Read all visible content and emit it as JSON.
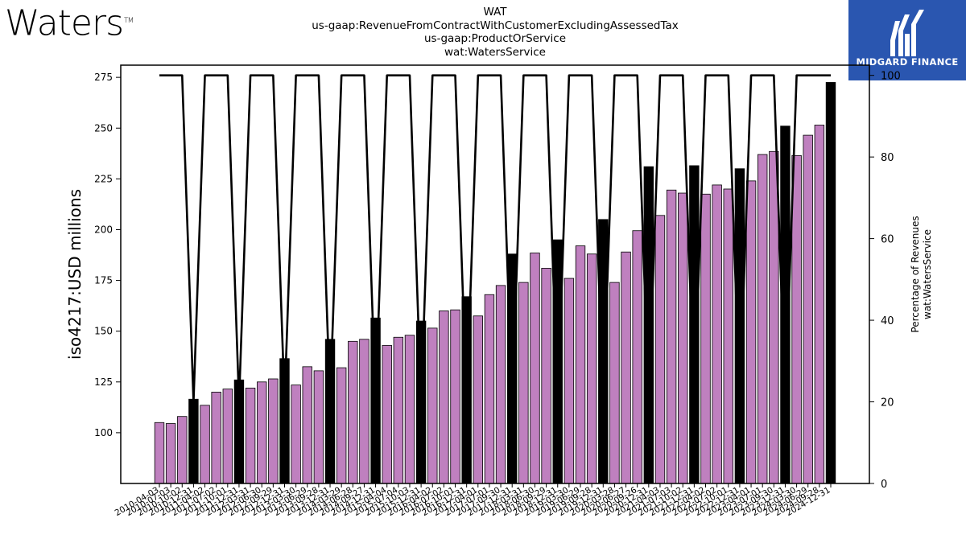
{
  "brand": {
    "logo": "Waters",
    "trademark": "TM"
  },
  "header": {
    "lines": [
      "WAT",
      "us-gaap:RevenueFromContractWithCustomerExcludingAssessedTax",
      "us-gaap:ProductOrService",
      "wat:WatersService"
    ]
  },
  "badge": {
    "name": "MIDGARD FINANCE",
    "icon": "midgard-logo-icon"
  },
  "colors": {
    "quarter_bar": "#bf80bf",
    "annual_bar": "#000000",
    "line": "#000000"
  },
  "chart_data": {
    "type": "bar",
    "ylabel": "iso4217:USD  millions",
    "y2label": [
      "Percentage of Revenues",
      "wat:WatersService"
    ],
    "ylim": [
      75,
      281
    ],
    "y2lim": [
      0,
      102.5
    ],
    "yticks": [
      100,
      125,
      150,
      175,
      200,
      225,
      250,
      275
    ],
    "y2ticks": [
      0,
      20,
      40,
      60,
      80,
      100
    ],
    "x_tick_labels": [
      "2010-04-03",
      "2010-07-03",
      "2010-10-02",
      "2010-12-31",
      "2011-04-02",
      "2011-07-02",
      "2011-10-01",
      "2011-12-31",
      "2012-03-31",
      "2012-06-30",
      "2012-09-29",
      "2012-12-31",
      "2013-03-30",
      "2013-06-29",
      "2013-09-28",
      "2013-12-31",
      "2014-03-29",
      "2014-06-28",
      "2014-09-27",
      "2014-12-31",
      "2015-04-04",
      "2015-07-04",
      "2015-10-03",
      "2015-12-31",
      "2016-04-02",
      "2016-07-02",
      "2016-10-01",
      "2016-12-31",
      "2017-04-01",
      "2017-07-01",
      "2017-09-30",
      "2017-12-31",
      "2018-03-31",
      "2018-06-30",
      "2018-09-29",
      "2018-12-31",
      "2019-03-30",
      "2019-06-29",
      "2019-09-28",
      "2019-12-31",
      "2020-03-28",
      "2020-06-27",
      "2020-09-26",
      "2020-12-31",
      "2021-04-03",
      "2021-07-03",
      "2021-10-02",
      "2021-12-31",
      "2022-04-02",
      "2022-07-02",
      "2022-10-01",
      "2022-12-31",
      "2023-04-01",
      "2023-07-01",
      "2023-09-30",
      "2023-12-31",
      "2024-03-30",
      "2024-06-29",
      "2024-09-28",
      "2024-12-31"
    ],
    "bar_values": [
      105,
      104.5,
      108,
      116.5,
      113.5,
      120,
      121.5,
      126,
      122,
      125,
      126.5,
      136.5,
      123.5,
      132.5,
      130.5,
      146,
      132,
      145,
      146,
      156.5,
      143,
      147,
      148,
      155,
      151.5,
      160,
      160.5,
      167,
      157.5,
      168,
      172.5,
      188,
      174,
      188.5,
      181,
      195,
      176,
      192,
      188,
      205,
      174,
      189,
      199.5,
      231,
      207,
      219.5,
      218,
      231.5,
      217.5,
      222,
      220,
      230,
      224,
      237,
      238.5,
      251,
      236.5,
      246.5,
      251.5,
      272.5
    ],
    "bar_type": [
      "q",
      "q",
      "q",
      "a",
      "q",
      "q",
      "q",
      "a",
      "q",
      "q",
      "q",
      "a",
      "q",
      "q",
      "q",
      "a",
      "q",
      "q",
      "q",
      "a",
      "q",
      "q",
      "q",
      "a",
      "q",
      "q",
      "q",
      "a",
      "q",
      "q",
      "q",
      "a",
      "q",
      "q",
      "q",
      "a",
      "q",
      "q",
      "q",
      "a",
      "q",
      "q",
      "q",
      "a",
      "q",
      "q",
      "q",
      "a",
      "q",
      "q",
      "q",
      "a",
      "q",
      "q",
      "q",
      "a",
      "q",
      "q",
      "q",
      "a"
    ],
    "percentage_values": [
      100,
      100,
      100,
      20,
      100,
      100,
      100,
      20,
      100,
      100,
      100,
      20,
      100,
      100,
      100,
      20,
      100,
      100,
      100,
      20,
      100,
      100,
      100,
      20,
      100,
      100,
      100,
      20,
      100,
      100,
      100,
      20,
      100,
      100,
      100,
      20,
      100,
      100,
      100,
      20,
      100,
      100,
      100,
      20,
      100,
      100,
      100,
      20,
      100,
      100,
      100,
      20,
      100,
      100,
      100,
      20,
      100,
      100,
      100,
      100
    ]
  }
}
